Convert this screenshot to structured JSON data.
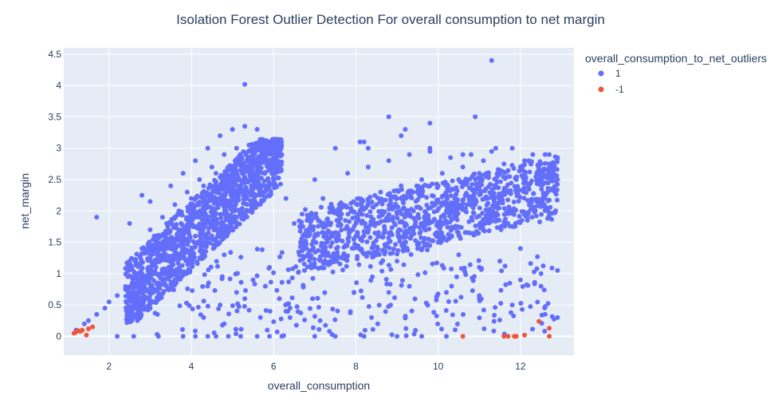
{
  "chart_data": {
    "type": "scatter",
    "title": "Isolation Forest Outlier Detection For overall consumption to net margin",
    "xlabel": "overall_consumption",
    "ylabel": "net_margin",
    "xlim": [
      0.9,
      13.3
    ],
    "ylim": [
      -0.3,
      4.6
    ],
    "xticks": [
      2,
      4,
      6,
      8,
      10,
      12
    ],
    "yticks": [
      0,
      0.5,
      1,
      1.5,
      2,
      2.5,
      3,
      3.5,
      4,
      4.5
    ],
    "ytick_labels": [
      "0",
      "0.5",
      "1",
      "1.5",
      "2",
      "2.5",
      "3",
      "3.5",
      "4",
      "4.5"
    ],
    "grid": true,
    "legend_title": "overall_consumption_to_net_outliers",
    "legend_position": "top-right",
    "series": [
      {
        "name": "1",
        "color": "#636efa",
        "x": [
          1.2,
          1.4,
          1.5,
          1.7,
          1.9,
          2.0,
          2.2,
          2.4,
          2.6,
          2.8,
          3.0,
          3.2,
          3.4,
          3.6,
          3.8,
          4.0,
          4.2,
          4.4,
          4.6,
          4.8,
          5.0,
          5.2,
          5.4,
          5.6,
          5.8,
          6.0,
          6.2,
          2.5,
          2.8,
          3.1,
          3.4,
          3.7,
          4.0,
          4.3,
          4.6,
          4.9,
          5.2,
          5.5,
          5.8,
          6.1,
          3.0,
          3.3,
          3.6,
          3.9,
          4.2,
          4.5,
          4.8,
          5.1,
          5.4,
          5.7,
          6.0,
          6.3,
          3.5,
          3.8,
          4.1,
          4.4,
          4.7,
          5.0,
          5.3,
          5.6,
          5.9,
          4.2,
          4.5,
          4.8,
          5.1,
          5.4,
          5.0,
          1.7,
          2.5,
          3.0,
          2.8,
          6.5,
          7.0,
          7.5,
          8.0,
          8.5,
          9.0,
          9.5,
          10.0,
          10.5,
          11.0,
          11.5,
          12.0,
          12.5,
          12.9,
          7.2,
          7.6,
          8.1,
          8.6,
          9.1,
          9.6,
          10.1,
          10.6,
          11.1,
          11.6,
          12.1,
          12.6,
          7.4,
          7.9,
          8.4,
          8.9,
          9.4,
          9.9,
          10.4,
          10.9,
          11.4,
          11.9,
          12.4,
          12.8,
          7.0,
          7.8,
          8.3,
          8.8,
          9.3,
          9.8,
          10.3,
          10.8,
          11.3,
          11.8,
          12.3,
          12.7,
          6.8,
          7.3,
          8.0,
          8.7,
          9.2,
          9.7,
          10.2,
          10.7,
          11.2,
          11.7,
          12.2,
          12.9,
          8.5,
          9.0,
          9.5,
          10.0,
          10.5,
          11.0,
          11.5,
          12.0,
          12.5,
          7.5,
          8.2,
          9.1,
          9.8,
          10.6,
          11.4,
          12.2,
          12.7,
          8.8,
          9.3,
          11.0,
          12.0,
          12.9,
          5.3,
          11.3,
          10.9,
          9.8,
          9.2,
          8.8,
          8.1,
          8.3,
          2.2,
          2.6,
          3.2,
          3.8,
          4.1,
          4.4,
          4.6,
          4.9,
          5.2,
          5.6,
          5.9,
          6.2,
          7.0,
          7.5,
          8.2,
          9.0,
          9.6,
          10.2,
          4.3,
          4.7,
          5.1,
          5.5,
          5.9,
          6.3,
          4.8,
          5.3,
          5.8,
          6.4,
          10.2,
          11.0,
          11.8,
          12.5,
          12.9,
          12.6
        ],
        "y": [
          0.1,
          0.2,
          0.25,
          0.35,
          0.45,
          0.55,
          0.65,
          0.75,
          0.85,
          1.0,
          1.1,
          1.25,
          1.4,
          1.55,
          1.7,
          1.85,
          2.0,
          2.15,
          2.3,
          2.45,
          2.55,
          2.65,
          2.7,
          2.75,
          2.8,
          2.85,
          2.9,
          1.2,
          1.4,
          1.6,
          1.8,
          2.0,
          2.2,
          2.4,
          2.6,
          2.7,
          2.8,
          2.85,
          2.9,
          2.7,
          1.7,
          1.9,
          2.1,
          2.3,
          2.5,
          2.7,
          2.9,
          3.0,
          3.05,
          2.95,
          2.5,
          2.2,
          2.4,
          2.6,
          2.8,
          3.0,
          3.2,
          3.3,
          3.35,
          3.3,
          3.1,
          1.5,
          1.6,
          1.3,
          1.8,
          2.0,
          2.25,
          1.9,
          1.8,
          2.15,
          2.25,
          1.8,
          1.9,
          2.0,
          1.9,
          2.1,
          2.2,
          2.3,
          2.4,
          2.5,
          2.6,
          2.65,
          2.7,
          2.75,
          2.85,
          2.2,
          2.1,
          2.0,
          2.3,
          2.4,
          2.5,
          2.6,
          2.7,
          2.8,
          2.75,
          2.8,
          2.9,
          1.6,
          1.7,
          1.8,
          1.9,
          2.0,
          2.1,
          2.2,
          2.3,
          2.4,
          2.5,
          2.6,
          2.7,
          2.5,
          2.6,
          2.7,
          2.8,
          2.9,
          2.95,
          2.85,
          2.9,
          2.95,
          3.0,
          2.9,
          2.75,
          1.4,
          1.5,
          1.6,
          1.7,
          1.8,
          1.9,
          2.0,
          2.1,
          2.2,
          2.3,
          2.4,
          2.5,
          1.3,
          1.2,
          1.4,
          1.5,
          1.3,
          1.1,
          1.2,
          1.4,
          1.0,
          3.0,
          3.1,
          3.2,
          3.0,
          2.9,
          3.0,
          2.8,
          2.9,
          0.7,
          0.8,
          0.6,
          0.9,
          1.05,
          4.02,
          4.4,
          3.5,
          3.4,
          3.3,
          3.5,
          3.1,
          3.0,
          0.0,
          0.0,
          0.0,
          0.0,
          0.0,
          0.0,
          0.0,
          0.0,
          0.0,
          0.0,
          0.0,
          0.0,
          0.0,
          0.0,
          0.0,
          0.0,
          0.0,
          0.0,
          0.3,
          0.5,
          0.7,
          0.9,
          1.1,
          0.4,
          0.2,
          0.6,
          0.8,
          0.3,
          0.7,
          0.65,
          0.5,
          0.8,
          0.3,
          0.35
        ],
        "note_density": "dense cloud rendered additionally by script from summary clusters"
      },
      {
        "name": "-1",
        "color": "#ef553b",
        "x": [
          1.15,
          1.2,
          1.25,
          1.3,
          1.35,
          1.45,
          1.5,
          1.6,
          10.6,
          11.6,
          11.7,
          11.85,
          11.9,
          12.1,
          12.45,
          12.7,
          12.7
        ],
        "y": [
          0.05,
          0.07,
          0.09,
          0.08,
          0.1,
          0.02,
          0.12,
          0.15,
          0.0,
          0.0,
          0.0,
          0.0,
          0.0,
          0.02,
          0.24,
          0.13,
          0.0
        ]
      }
    ]
  }
}
